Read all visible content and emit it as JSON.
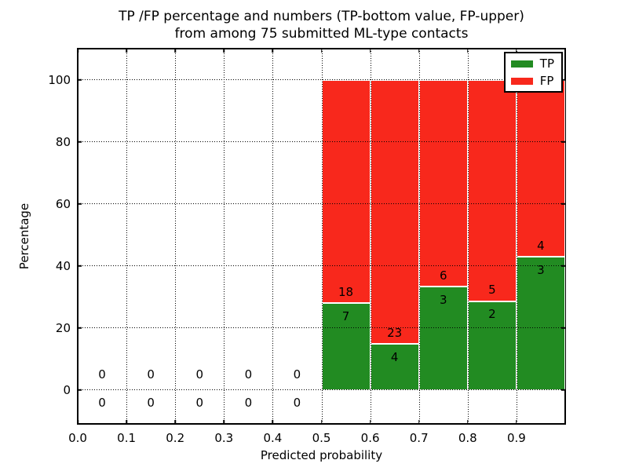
{
  "chart_data": {
    "type": "bar",
    "stacked": true,
    "title": "TP /FP percentage and numbers (TP-bottom value, FP-upper) from among 75 submitted ML-type contacts",
    "title_line1": "TP /FP percentage and numbers (TP-bottom value, FP-upper)",
    "title_line2": "from among 75 submitted ML-type contacts",
    "xlabel": "Predicted probability",
    "ylabel": "Percentage",
    "xlim": [
      0.0,
      1.0
    ],
    "ylim": [
      -11,
      110
    ],
    "x_tick_values": [
      0.0,
      0.1,
      0.2,
      0.3,
      0.4,
      0.5,
      0.6,
      0.7,
      0.8,
      0.9
    ],
    "x_tick_labels": [
      "0.0",
      "0.1",
      "0.2",
      "0.3",
      "0.4",
      "0.5",
      "0.6",
      "0.7",
      "0.8",
      "0.9"
    ],
    "y_tick_values": [
      0,
      20,
      40,
      60,
      80,
      100
    ],
    "y_tick_labels": [
      "0",
      "20",
      "40",
      "60",
      "80",
      "100"
    ],
    "grid": {
      "style": "dotted",
      "color": "#000000",
      "above_bars": true
    },
    "colors": {
      "tp": "#228b22",
      "fp": "#f8281c",
      "bar_edge": "#ffffff"
    },
    "legend": {
      "position": "upper right",
      "entries": [
        {
          "label": "TP",
          "color_key": "tp"
        },
        {
          "label": "FP",
          "color_key": "fp"
        }
      ]
    },
    "total_contacts": 75,
    "bins": [
      {
        "x_start": 0.0,
        "x_end": 0.1,
        "tp_count": 0,
        "fp_count": 0,
        "tp_pct": 0,
        "fp_pct": 0
      },
      {
        "x_start": 0.1,
        "x_end": 0.2,
        "tp_count": 0,
        "fp_count": 0,
        "tp_pct": 0,
        "fp_pct": 0
      },
      {
        "x_start": 0.2,
        "x_end": 0.3,
        "tp_count": 0,
        "fp_count": 0,
        "tp_pct": 0,
        "fp_pct": 0
      },
      {
        "x_start": 0.3,
        "x_end": 0.4,
        "tp_count": 0,
        "fp_count": 0,
        "tp_pct": 0,
        "fp_pct": 0
      },
      {
        "x_start": 0.4,
        "x_end": 0.5,
        "tp_count": 0,
        "fp_count": 0,
        "tp_pct": 0,
        "fp_pct": 0
      },
      {
        "x_start": 0.5,
        "x_end": 0.6,
        "tp_count": 7,
        "fp_count": 18,
        "tp_pct": 28.0,
        "fp_pct": 72.0
      },
      {
        "x_start": 0.6,
        "x_end": 0.7,
        "tp_count": 4,
        "fp_count": 23,
        "tp_pct": 14.8,
        "fp_pct": 85.2
      },
      {
        "x_start": 0.7,
        "x_end": 0.8,
        "tp_count": 3,
        "fp_count": 6,
        "tp_pct": 33.3,
        "fp_pct": 66.7
      },
      {
        "x_start": 0.8,
        "x_end": 0.9,
        "tp_count": 2,
        "fp_count": 5,
        "tp_pct": 28.6,
        "fp_pct": 71.4
      },
      {
        "x_start": 0.9,
        "x_end": 1.0,
        "tp_count": 3,
        "fp_count": 4,
        "tp_pct": 42.9,
        "fp_pct": 57.1
      }
    ]
  }
}
